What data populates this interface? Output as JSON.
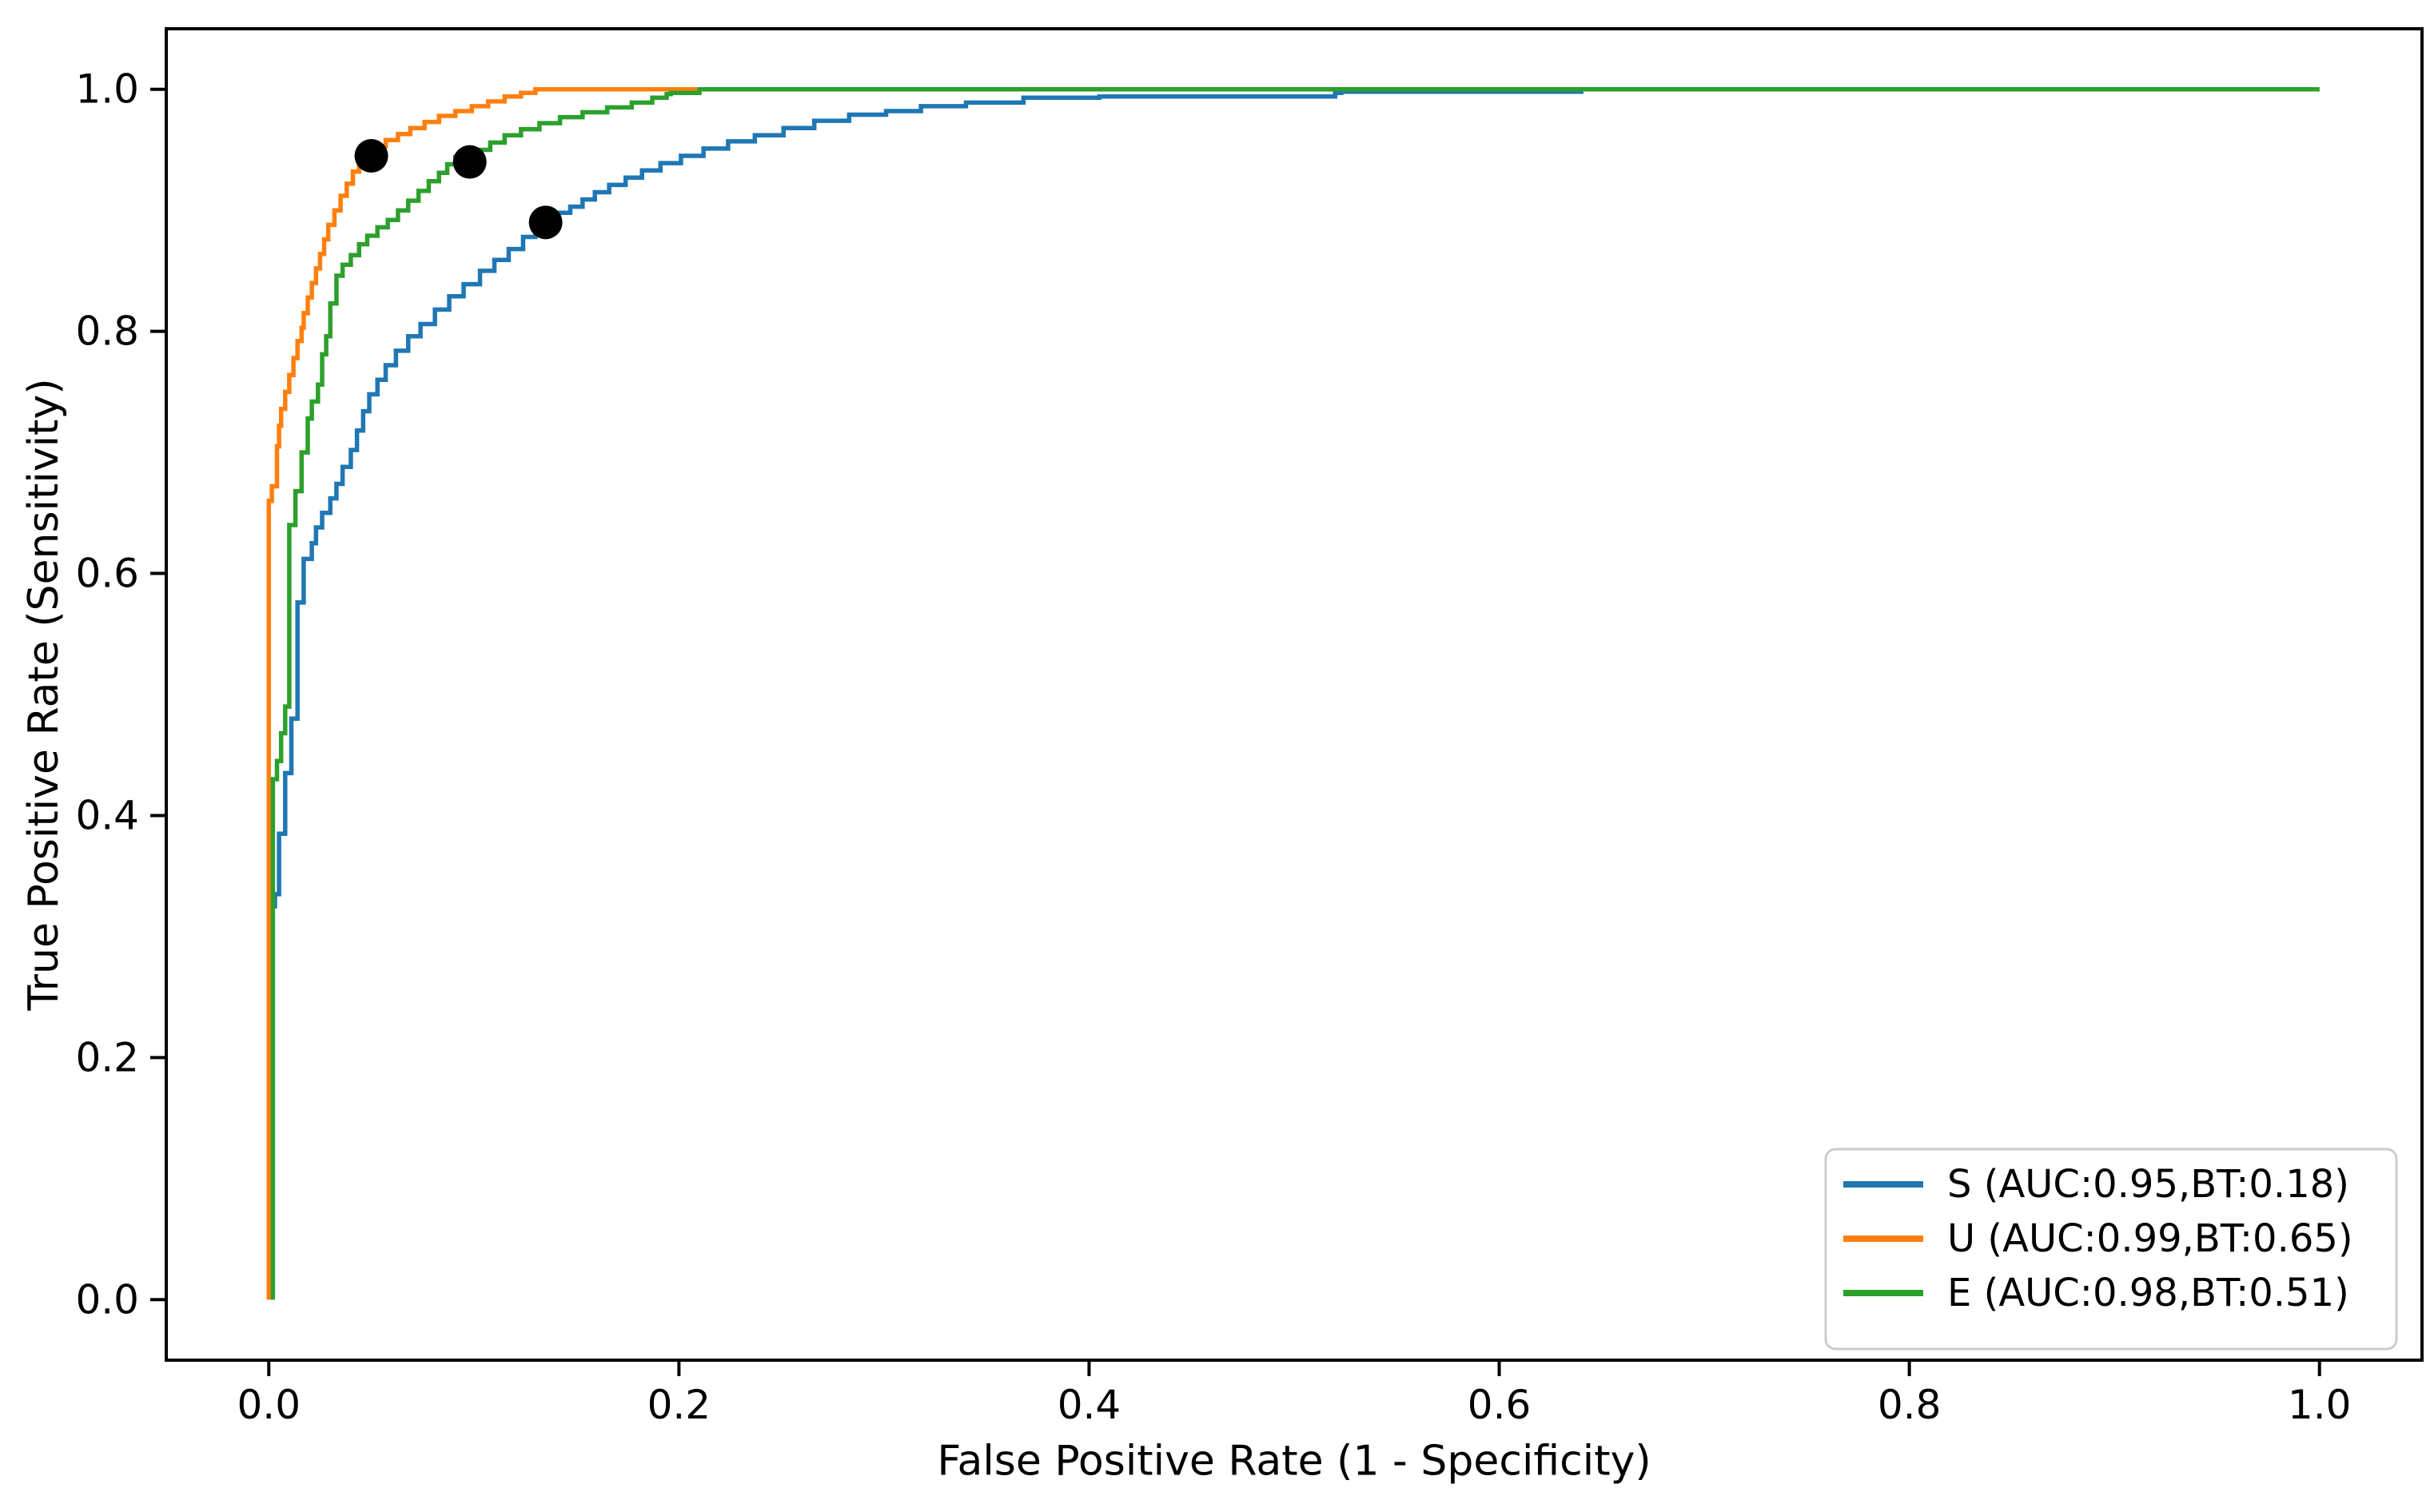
{
  "figure": {
    "background_color": "#ffffff",
    "spine_color": "#000000"
  },
  "chart_data": {
    "type": "line",
    "subtype": "roc-step-curves",
    "title": "",
    "xlabel": "False Positive Rate (1 - Specificity)",
    "ylabel": "True Positive Rate (Sensitivity)",
    "xlim": [
      -0.05,
      1.05
    ],
    "ylim": [
      -0.05,
      1.05
    ],
    "x_ticks": [
      0.0,
      0.2,
      0.4,
      0.6,
      0.8,
      1.0
    ],
    "x_tick_labels": [
      "0.0",
      "0.2",
      "0.4",
      "0.6",
      "0.8",
      "1.0"
    ],
    "y_ticks": [
      0.0,
      0.2,
      0.4,
      0.6,
      0.8,
      1.0
    ],
    "y_tick_labels": [
      "0.0",
      "0.2",
      "0.4",
      "0.6",
      "0.8",
      "1.0"
    ],
    "grid": false,
    "legend_position": "lower right",
    "legend_border_color": "#cccccc",
    "legend_background": "#ffffff",
    "marker_color": "#000000",
    "series": [
      {
        "name": "S",
        "label": "S (AUC:0.95,BT:0.18)",
        "auc": 0.95,
        "best_threshold": 0.18,
        "color": "#1f77b4",
        "best_threshold_point": [
          0.135,
          0.89
        ],
        "points": [
          [
            0.001,
            0.0
          ],
          [
            0.003,
            0.325
          ],
          [
            0.005,
            0.335
          ],
          [
            0.005,
            0.375
          ],
          [
            0.008,
            0.385
          ],
          [
            0.008,
            0.425
          ],
          [
            0.011,
            0.435
          ],
          [
            0.011,
            0.47
          ],
          [
            0.014,
            0.48
          ],
          [
            0.014,
            0.565
          ],
          [
            0.017,
            0.576
          ],
          [
            0.017,
            0.6
          ],
          [
            0.021,
            0.612
          ],
          [
            0.023,
            0.625
          ],
          [
            0.026,
            0.638
          ],
          [
            0.03,
            0.65
          ],
          [
            0.033,
            0.662
          ],
          [
            0.036,
            0.674
          ],
          [
            0.04,
            0.688
          ],
          [
            0.043,
            0.702
          ],
          [
            0.046,
            0.718
          ],
          [
            0.049,
            0.734
          ],
          [
            0.053,
            0.748
          ],
          [
            0.057,
            0.76
          ],
          [
            0.062,
            0.772
          ],
          [
            0.068,
            0.784
          ],
          [
            0.074,
            0.796
          ],
          [
            0.081,
            0.806
          ],
          [
            0.088,
            0.818
          ],
          [
            0.095,
            0.829
          ],
          [
            0.103,
            0.839
          ],
          [
            0.11,
            0.85
          ],
          [
            0.117,
            0.859
          ],
          [
            0.124,
            0.868
          ],
          [
            0.13,
            0.878
          ],
          [
            0.136,
            0.888
          ],
          [
            0.141,
            0.893
          ],
          [
            0.147,
            0.898
          ],
          [
            0.153,
            0.903
          ],
          [
            0.159,
            0.909
          ],
          [
            0.166,
            0.915
          ],
          [
            0.174,
            0.921
          ],
          [
            0.182,
            0.927
          ],
          [
            0.191,
            0.933
          ],
          [
            0.201,
            0.939
          ],
          [
            0.212,
            0.945
          ],
          [
            0.224,
            0.951
          ],
          [
            0.237,
            0.957
          ],
          [
            0.251,
            0.962
          ],
          [
            0.266,
            0.968
          ],
          [
            0.283,
            0.974
          ],
          [
            0.301,
            0.979
          ],
          [
            0.318,
            0.982
          ],
          [
            0.34,
            0.986
          ],
          [
            0.368,
            0.989
          ],
          [
            0.405,
            0.993
          ],
          [
            0.52,
            0.994
          ],
          [
            0.523,
            0.997
          ],
          [
            0.64,
            0.998
          ],
          [
            0.643,
            1.0
          ],
          [
            1.0,
            1.0
          ]
        ]
      },
      {
        "name": "U",
        "label": "U (AUC:0.99,BT:0.65)",
        "auc": 0.99,
        "best_threshold": 0.65,
        "color": "#ff7f0e",
        "best_threshold_point": [
          0.05,
          0.945
        ],
        "points": [
          [
            0.0,
            0.0
          ],
          [
            0.0015,
            0.66
          ],
          [
            0.004,
            0.672
          ],
          [
            0.004,
            0.693
          ],
          [
            0.005,
            0.705
          ],
          [
            0.006,
            0.722
          ],
          [
            0.008,
            0.736
          ],
          [
            0.01,
            0.75
          ],
          [
            0.012,
            0.764
          ],
          [
            0.014,
            0.778
          ],
          [
            0.016,
            0.792
          ],
          [
            0.017,
            0.803
          ],
          [
            0.019,
            0.815
          ],
          [
            0.021,
            0.828
          ],
          [
            0.023,
            0.84
          ],
          [
            0.025,
            0.852
          ],
          [
            0.027,
            0.864
          ],
          [
            0.029,
            0.876
          ],
          [
            0.032,
            0.888
          ],
          [
            0.035,
            0.9
          ],
          [
            0.038,
            0.912
          ],
          [
            0.041,
            0.922
          ],
          [
            0.044,
            0.932
          ],
          [
            0.047,
            0.94
          ],
          [
            0.051,
            0.947
          ],
          [
            0.057,
            0.953
          ],
          [
            0.063,
            0.958
          ],
          [
            0.069,
            0.963
          ],
          [
            0.076,
            0.968
          ],
          [
            0.083,
            0.973
          ],
          [
            0.091,
            0.978
          ],
          [
            0.099,
            0.982
          ],
          [
            0.107,
            0.986
          ],
          [
            0.115,
            0.99
          ],
          [
            0.123,
            0.994
          ],
          [
            0.13,
            0.997
          ],
          [
            0.133,
            1.0
          ],
          [
            1.0,
            1.0
          ]
        ]
      },
      {
        "name": "E",
        "label": "E (AUC:0.98,BT:0.51)",
        "auc": 0.98,
        "best_threshold": 0.51,
        "color": "#2ca02c",
        "best_threshold_point": [
          0.098,
          0.94
        ],
        "points": [
          [
            0.002,
            0.0
          ],
          [
            0.004,
            0.43
          ],
          [
            0.006,
            0.445
          ],
          [
            0.006,
            0.458
          ],
          [
            0.008,
            0.468
          ],
          [
            0.008,
            0.48
          ],
          [
            0.01,
            0.49
          ],
          [
            0.01,
            0.625
          ],
          [
            0.013,
            0.64
          ],
          [
            0.013,
            0.655
          ],
          [
            0.016,
            0.668
          ],
          [
            0.016,
            0.685
          ],
          [
            0.019,
            0.7
          ],
          [
            0.019,
            0.714
          ],
          [
            0.021,
            0.728
          ],
          [
            0.024,
            0.742
          ],
          [
            0.026,
            0.756
          ],
          [
            0.026,
            0.769
          ],
          [
            0.028,
            0.781
          ],
          [
            0.03,
            0.796
          ],
          [
            0.03,
            0.81
          ],
          [
            0.033,
            0.823
          ],
          [
            0.033,
            0.836
          ],
          [
            0.036,
            0.846
          ],
          [
            0.04,
            0.855
          ],
          [
            0.044,
            0.863
          ],
          [
            0.048,
            0.872
          ],
          [
            0.053,
            0.879
          ],
          [
            0.058,
            0.886
          ],
          [
            0.063,
            0.892
          ],
          [
            0.068,
            0.9
          ],
          [
            0.073,
            0.908
          ],
          [
            0.078,
            0.916
          ],
          [
            0.083,
            0.924
          ],
          [
            0.087,
            0.931
          ],
          [
            0.091,
            0.938
          ],
          [
            0.101,
            0.944
          ],
          [
            0.108,
            0.95
          ],
          [
            0.115,
            0.956
          ],
          [
            0.123,
            0.962
          ],
          [
            0.132,
            0.967
          ],
          [
            0.142,
            0.972
          ],
          [
            0.153,
            0.977
          ],
          [
            0.165,
            0.981
          ],
          [
            0.177,
            0.985
          ],
          [
            0.187,
            0.989
          ],
          [
            0.194,
            0.993
          ],
          [
            0.196,
            0.996
          ],
          [
            0.21,
            0.997
          ],
          [
            0.213,
            1.0
          ],
          [
            1.0,
            1.0
          ]
        ]
      }
    ]
  }
}
